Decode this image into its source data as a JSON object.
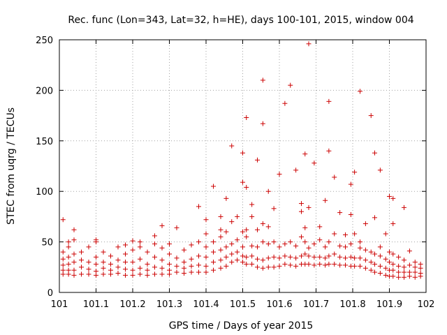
{
  "chart_data": {
    "type": "scatter",
    "title": "Rec. func (Lon=343, Lat=32, h=HE), days 100-101, 2015, window 004",
    "xlabel": "GPS time / Days of year 2015",
    "ylabel": "STEC from uqrg / TECUs",
    "xlim": [
      101,
      102
    ],
    "ylim": [
      0,
      250
    ],
    "x_ticks": [
      "101",
      "101.1",
      "101.2",
      "101.3",
      "101.4",
      "101.5",
      "101.6",
      "101.7",
      "101.8",
      "101.9",
      "102"
    ],
    "y_ticks": [
      "0",
      "50",
      "100",
      "150",
      "200",
      "250"
    ],
    "grid": true,
    "marker": "+",
    "color": "#cc0000",
    "series": [
      {
        "points": [
          [
            101.01,
            72
          ],
          [
            101.01,
            18
          ],
          [
            101.01,
            22
          ],
          [
            101.01,
            27
          ],
          [
            101.01,
            33
          ],
          [
            101.01,
            40
          ],
          [
            101.025,
            18
          ],
          [
            101.025,
            22
          ],
          [
            101.025,
            28
          ],
          [
            101.025,
            35
          ],
          [
            101.025,
            45
          ],
          [
            101.025,
            50
          ],
          [
            101.04,
            62
          ],
          [
            101.04,
            17
          ],
          [
            101.04,
            22
          ],
          [
            101.04,
            30
          ],
          [
            101.04,
            38
          ],
          [
            101.04,
            52
          ],
          [
            101.06,
            18
          ],
          [
            101.06,
            25
          ],
          [
            101.06,
            32
          ],
          [
            101.06,
            40
          ],
          [
            101.08,
            18
          ],
          [
            101.08,
            23
          ],
          [
            101.08,
            30
          ],
          [
            101.08,
            45
          ],
          [
            101.1,
            50
          ],
          [
            101.1,
            52
          ],
          [
            101.1,
            17
          ],
          [
            101.1,
            21
          ],
          [
            101.1,
            28
          ],
          [
            101.1,
            35
          ],
          [
            101.12,
            18
          ],
          [
            101.12,
            24
          ],
          [
            101.12,
            30
          ],
          [
            101.12,
            40
          ],
          [
            101.14,
            18
          ],
          [
            101.14,
            22
          ],
          [
            101.14,
            28
          ],
          [
            101.14,
            36
          ],
          [
            101.16,
            19
          ],
          [
            101.16,
            25
          ],
          [
            101.16,
            32
          ],
          [
            101.16,
            45
          ],
          [
            101.18,
            17
          ],
          [
            101.18,
            23
          ],
          [
            101.18,
            30
          ],
          [
            101.18,
            38
          ],
          [
            101.18,
            47
          ],
          [
            101.2,
            51
          ],
          [
            101.2,
            17
          ],
          [
            101.2,
            22
          ],
          [
            101.2,
            30
          ],
          [
            101.2,
            42
          ],
          [
            101.22,
            18
          ],
          [
            101.22,
            24
          ],
          [
            101.22,
            33
          ],
          [
            101.22,
            45
          ],
          [
            101.22,
            50
          ],
          [
            101.24,
            17
          ],
          [
            101.24,
            22
          ],
          [
            101.24,
            28
          ],
          [
            101.24,
            40
          ],
          [
            101.26,
            56
          ],
          [
            101.26,
            18
          ],
          [
            101.26,
            25
          ],
          [
            101.26,
            35
          ],
          [
            101.26,
            48
          ],
          [
            101.28,
            66
          ],
          [
            101.28,
            18
          ],
          [
            101.28,
            24
          ],
          [
            101.28,
            32
          ],
          [
            101.28,
            44
          ],
          [
            101.3,
            18
          ],
          [
            101.3,
            22
          ],
          [
            101.3,
            28
          ],
          [
            101.3,
            38
          ],
          [
            101.3,
            48
          ],
          [
            101.32,
            64
          ],
          [
            101.32,
            20
          ],
          [
            101.32,
            26
          ],
          [
            101.32,
            34
          ],
          [
            101.34,
            19
          ],
          [
            101.34,
            24
          ],
          [
            101.34,
            30
          ],
          [
            101.34,
            42
          ],
          [
            101.36,
            20
          ],
          [
            101.36,
            26
          ],
          [
            101.36,
            33
          ],
          [
            101.36,
            47
          ],
          [
            101.38,
            85
          ],
          [
            101.38,
            20
          ],
          [
            101.38,
            27
          ],
          [
            101.38,
            36
          ],
          [
            101.38,
            50
          ],
          [
            101.4,
            72
          ],
          [
            101.4,
            20
          ],
          [
            101.4,
            26
          ],
          [
            101.4,
            35
          ],
          [
            101.4,
            45
          ],
          [
            101.4,
            58
          ],
          [
            101.42,
            105
          ],
          [
            101.42,
            22
          ],
          [
            101.42,
            30
          ],
          [
            101.42,
            40
          ],
          [
            101.42,
            50
          ],
          [
            101.44,
            75
          ],
          [
            101.44,
            62
          ],
          [
            101.44,
            24
          ],
          [
            101.44,
            32
          ],
          [
            101.44,
            42
          ],
          [
            101.44,
            55
          ],
          [
            101.455,
            93
          ],
          [
            101.455,
            26
          ],
          [
            101.455,
            35
          ],
          [
            101.455,
            45
          ],
          [
            101.455,
            60
          ],
          [
            101.47,
            145
          ],
          [
            101.47,
            30
          ],
          [
            101.47,
            38
          ],
          [
            101.47,
            48
          ],
          [
            101.47,
            70
          ],
          [
            101.485,
            75
          ],
          [
            101.485,
            32
          ],
          [
            101.485,
            40
          ],
          [
            101.485,
            52
          ],
          [
            101.5,
            138
          ],
          [
            101.5,
            109
          ],
          [
            101.5,
            30
          ],
          [
            101.5,
            36
          ],
          [
            101.5,
            45
          ],
          [
            101.5,
            60
          ],
          [
            101.51,
            173
          ],
          [
            101.51,
            104
          ],
          [
            101.51,
            28
          ],
          [
            101.51,
            35
          ],
          [
            101.51,
            55
          ],
          [
            101.51,
            62
          ],
          [
            101.525,
            87
          ],
          [
            101.525,
            75
          ],
          [
            101.525,
            28
          ],
          [
            101.525,
            36
          ],
          [
            101.525,
            46
          ],
          [
            101.54,
            131
          ],
          [
            101.54,
            25
          ],
          [
            101.54,
            33
          ],
          [
            101.54,
            45
          ],
          [
            101.54,
            62
          ],
          [
            101.555,
            210
          ],
          [
            101.555,
            167
          ],
          [
            101.555,
            24
          ],
          [
            101.555,
            32
          ],
          [
            101.555,
            50
          ],
          [
            101.555,
            68
          ],
          [
            101.57,
            100
          ],
          [
            101.57,
            25
          ],
          [
            101.57,
            34
          ],
          [
            101.57,
            48
          ],
          [
            101.57,
            65
          ],
          [
            101.585,
            83
          ],
          [
            101.585,
            25
          ],
          [
            101.585,
            35
          ],
          [
            101.585,
            50
          ],
          [
            101.6,
            117
          ],
          [
            101.6,
            26
          ],
          [
            101.6,
            34
          ],
          [
            101.6,
            45
          ],
          [
            101.615,
            187
          ],
          [
            101.615,
            28
          ],
          [
            101.615,
            36
          ],
          [
            101.615,
            48
          ],
          [
            101.63,
            205
          ],
          [
            101.63,
            27
          ],
          [
            101.63,
            35
          ],
          [
            101.63,
            50
          ],
          [
            101.645,
            121
          ],
          [
            101.645,
            26
          ],
          [
            101.645,
            34
          ],
          [
            101.645,
            46
          ],
          [
            101.66,
            88
          ],
          [
            101.66,
            80
          ],
          [
            101.66,
            28
          ],
          [
            101.66,
            36
          ],
          [
            101.66,
            55
          ],
          [
            101.67,
            137
          ],
          [
            101.67,
            64
          ],
          [
            101.67,
            28
          ],
          [
            101.67,
            38
          ],
          [
            101.67,
            50
          ],
          [
            101.68,
            246
          ],
          [
            101.68,
            84
          ],
          [
            101.68,
            28
          ],
          [
            101.68,
            36
          ],
          [
            101.68,
            44
          ],
          [
            101.695,
            128
          ],
          [
            101.695,
            27
          ],
          [
            101.695,
            35
          ],
          [
            101.695,
            48
          ],
          [
            101.71,
            65
          ],
          [
            101.71,
            28
          ],
          [
            101.71,
            35
          ],
          [
            101.71,
            52
          ],
          [
            101.725,
            91
          ],
          [
            101.725,
            27
          ],
          [
            101.725,
            34
          ],
          [
            101.725,
            45
          ],
          [
            101.735,
            189
          ],
          [
            101.735,
            140
          ],
          [
            101.735,
            28
          ],
          [
            101.735,
            36
          ],
          [
            101.735,
            50
          ],
          [
            101.75,
            114
          ],
          [
            101.75,
            58
          ],
          [
            101.75,
            28
          ],
          [
            101.75,
            38
          ],
          [
            101.765,
            79
          ],
          [
            101.765,
            27
          ],
          [
            101.765,
            35
          ],
          [
            101.765,
            46
          ],
          [
            101.78,
            57
          ],
          [
            101.78,
            27
          ],
          [
            101.78,
            34
          ],
          [
            101.78,
            45
          ],
          [
            101.795,
            107
          ],
          [
            101.795,
            77
          ],
          [
            101.795,
            26
          ],
          [
            101.795,
            35
          ],
          [
            101.795,
            48
          ],
          [
            101.805,
            119
          ],
          [
            101.805,
            26
          ],
          [
            101.805,
            34
          ],
          [
            101.805,
            58
          ],
          [
            101.82,
            199
          ],
          [
            101.82,
            50
          ],
          [
            101.82,
            26
          ],
          [
            101.82,
            34
          ],
          [
            101.82,
            44
          ],
          [
            101.835,
            68
          ],
          [
            101.835,
            24
          ],
          [
            101.835,
            32
          ],
          [
            101.835,
            42
          ],
          [
            101.85,
            175
          ],
          [
            101.85,
            22
          ],
          [
            101.85,
            30
          ],
          [
            101.85,
            40
          ],
          [
            101.86,
            138
          ],
          [
            101.86,
            74
          ],
          [
            101.86,
            20
          ],
          [
            101.86,
            28
          ],
          [
            101.86,
            38
          ],
          [
            101.875,
            121
          ],
          [
            101.875,
            19
          ],
          [
            101.875,
            26
          ],
          [
            101.875,
            36
          ],
          [
            101.875,
            45
          ],
          [
            101.89,
            58
          ],
          [
            101.89,
            17
          ],
          [
            101.89,
            24
          ],
          [
            101.89,
            33
          ],
          [
            101.9,
            95
          ],
          [
            101.9,
            40
          ],
          [
            101.9,
            16
          ],
          [
            101.9,
            22
          ],
          [
            101.9,
            30
          ],
          [
            101.91,
            93
          ],
          [
            101.91,
            68
          ],
          [
            101.91,
            16
          ],
          [
            101.91,
            22
          ],
          [
            101.91,
            28
          ],
          [
            101.91,
            38
          ],
          [
            101.925,
            15
          ],
          [
            101.925,
            20
          ],
          [
            101.925,
            26
          ],
          [
            101.925,
            35
          ],
          [
            101.94,
            84
          ],
          [
            101.94,
            15
          ],
          [
            101.94,
            20
          ],
          [
            101.94,
            25
          ],
          [
            101.94,
            32
          ],
          [
            101.955,
            41
          ],
          [
            101.955,
            16
          ],
          [
            101.955,
            20
          ],
          [
            101.955,
            27
          ],
          [
            101.97,
            15
          ],
          [
            101.97,
            20
          ],
          [
            101.97,
            25
          ],
          [
            101.97,
            30
          ],
          [
            101.985,
            16
          ],
          [
            101.985,
            19
          ],
          [
            101.985,
            24
          ],
          [
            101.985,
            28
          ]
        ]
      }
    ]
  }
}
